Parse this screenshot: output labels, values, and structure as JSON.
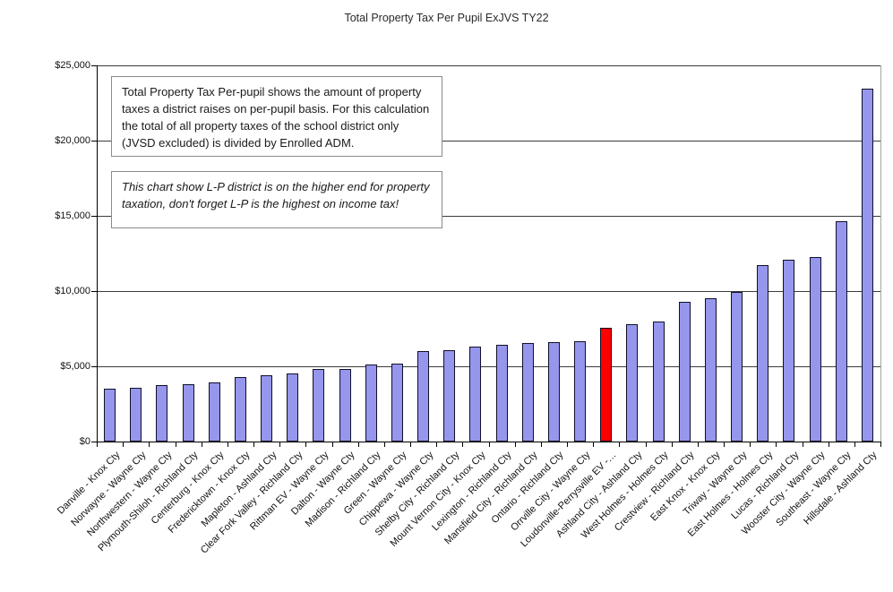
{
  "chart_data": {
    "type": "bar",
    "title": "Total Property Tax Per Pupil ExJVS TY22",
    "xlabel": "",
    "ylabel": "",
    "ylim": [
      0,
      25000
    ],
    "ytick_interval": 5000,
    "ytick_labels": [
      "$0",
      "$5,000",
      "$10,000",
      "$15,000",
      "$20,000",
      "$25,000"
    ],
    "grid": true,
    "legend": "none",
    "categories": [
      "Danville - Knox Cty",
      "Norwayne - Wayne Cty",
      "Northwestern - Wayne Cty",
      "Plymouth-Shiloh - Richland Cty",
      "Centerburg - Knox Cty",
      "Fredericktown - Knox Cty",
      "Mapleton - Ashland Cty",
      "Clear Fork Valley - Richland Cty",
      "Rittman EV - Wayne Cty",
      "Dalton - Wayne Cty",
      "Madison - Richland Cty",
      "Green - Wayne Cty",
      "Chippewa - Wayne Cty",
      "Shelby City - Richland Cty",
      "Mount Vernon City - Knox Cty",
      "Lexington - Richland Cty",
      "Mansfield City - Richland Cty",
      "Ontario - Richland Cty",
      "Orrville City - Wayne Cty",
      "Loudonville-Perrysville EV -…",
      "Ashland City - Ashland Cty",
      "West Holmes - Holmes Cty",
      "Crestview - Richland Cty",
      "East Knox - Knox Cty",
      "Triway - Wayne Cty",
      "East Holmes - Holmes Cty",
      "Lucas  - Richland Cty",
      "Wooster City - Wayne Cty",
      "Southeast - Wayne Cty",
      "Hillsdale - Ashland Cty"
    ],
    "values": [
      3500,
      3600,
      3750,
      3800,
      3900,
      4300,
      4400,
      4500,
      4800,
      4850,
      5100,
      5150,
      6000,
      6100,
      6300,
      6450,
      6550,
      6600,
      6650,
      7550,
      7800,
      7950,
      9300,
      9500,
      9950,
      11750,
      12100,
      12250,
      14650,
      23450
    ],
    "highlight_index": 19,
    "highlight_category": "Loudonville-Perrysville EV -…",
    "colors": {
      "bar_fill": "#9596ec",
      "bar_border": "#101028",
      "highlight_fill": "#fe0000",
      "gridline": "#3c3c3c",
      "plot_border": "#a6a6a6"
    },
    "annotations": [
      {
        "id": "definition-note",
        "style": "normal",
        "text": "Total Property Tax Per-pupil shows the amount of property taxes a district raises on per-pupil basis. For this calculation the total of all property taxes of the school district only (JVSD excluded) is divided by Enrolled ADM."
      },
      {
        "id": "lp-note",
        "style": "italic",
        "text": "This chart show L-P district is on the higher end for property taxation, don't forget L-P is the highest on income tax!"
      }
    ]
  }
}
